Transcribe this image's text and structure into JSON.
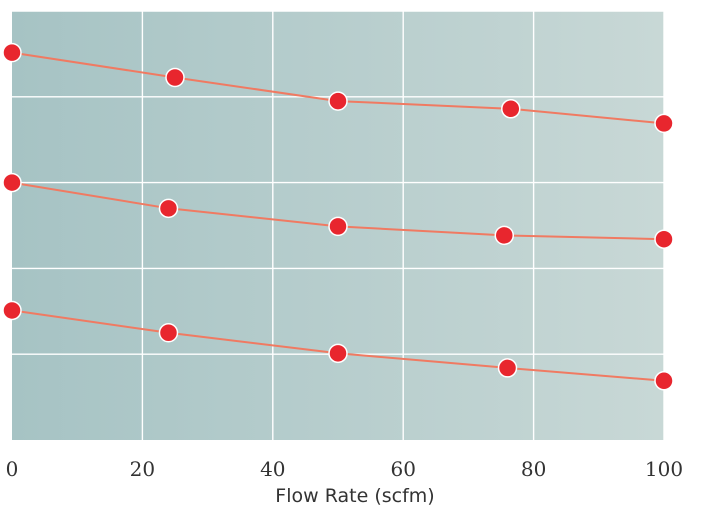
{
  "chart_data": {
    "type": "line",
    "title": "",
    "xlabel": "Flow Rate (scfm)",
    "ylabel": "",
    "xlim": [
      0,
      100
    ],
    "xticks": [
      "0",
      "20",
      "40",
      "60",
      "80",
      "100"
    ],
    "ylim": [
      0,
      1
    ],
    "grid": true,
    "legend": "none",
    "series": [
      {
        "x": [
          0,
          25,
          50,
          76.5,
          100
        ],
        "y": [
          0.903,
          0.845,
          0.79,
          0.772,
          0.738
        ]
      },
      {
        "x": [
          0,
          24,
          50,
          75.5,
          100
        ],
        "y": [
          0.6,
          0.54,
          0.498,
          0.477,
          0.468
        ]
      },
      {
        "x": [
          0,
          24,
          50,
          76,
          100
        ],
        "y": [
          0.302,
          0.25,
          0.202,
          0.168,
          0.138
        ]
      }
    ]
  },
  "colors": {
    "line": "#f07a62",
    "marker_fill": "#e8262e",
    "marker_stroke": "#ffffff",
    "grid": "#ffffff",
    "bg_left": "#a6c3c4",
    "bg_right": "#c8d8d6"
  }
}
